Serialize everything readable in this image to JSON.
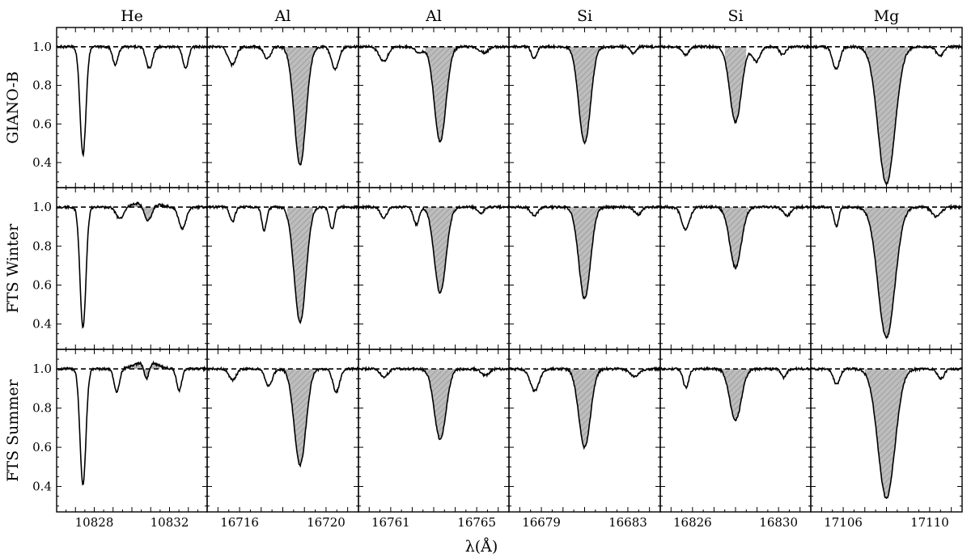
{
  "chart_data": {
    "type": "line",
    "xlabel": "λ(Å)",
    "rows": [
      "GIANO-B",
      "FTS Winter",
      "FTS Summer"
    ],
    "columns": [
      {
        "element": "He",
        "xlim": [
          10826.0,
          10834.0
        ],
        "xticks": [
          10828,
          10832
        ]
      },
      {
        "element": "Al",
        "xlim": [
          16714.5,
          16721.5
        ],
        "xticks": [
          16716,
          16720
        ]
      },
      {
        "element": "Al",
        "xlim": [
          16759.5,
          16766.5
        ],
        "xticks": [
          16761,
          16765
        ]
      },
      {
        "element": "Si",
        "xlim": [
          16677.5,
          16684.5
        ],
        "xticks": [
          16679,
          16683
        ]
      },
      {
        "element": "Si",
        "xlim": [
          16824.5,
          16831.5
        ],
        "xticks": [
          16826,
          16830
        ]
      },
      {
        "element": "Mg",
        "xlim": [
          17104.5,
          17111.5
        ],
        "xticks": [
          17106,
          17110
        ]
      }
    ],
    "ylim": [
      0.27,
      1.1
    ],
    "yticks": [
      "0.4",
      "0.6",
      "0.8",
      "1.0"
    ],
    "continuum": 1.0,
    "panels": [
      [
        {
          "line_center": 10827.4,
          "min_flux": 0.44,
          "shade": false
        },
        {
          "line_center": 16718.8,
          "min_flux": 0.39,
          "shade": [
            16718.0,
            16719.6
          ]
        },
        {
          "line_center": 16763.3,
          "min_flux": 0.51,
          "shade": [
            16762.6,
            16764.0
          ]
        },
        {
          "line_center": 16681.0,
          "min_flux": 0.5,
          "shade": [
            16680.1,
            16681.9
          ]
        },
        {
          "line_center": 16828.0,
          "min_flux": 0.61,
          "shade": [
            16827.5,
            16828.5
          ]
        },
        {
          "line_center": 17108.0,
          "min_flux": 0.29,
          "shade": [
            17107.0,
            17109.0
          ]
        }
      ],
      [
        {
          "line_center": 10827.4,
          "min_flux": 0.38,
          "shade": [
            10830.0,
            10831.5
          ],
          "emission_peak": 1.03
        },
        {
          "line_center": 16718.8,
          "min_flux": 0.41,
          "shade": [
            16718.2,
            16719.4
          ]
        },
        {
          "line_center": 16763.3,
          "min_flux": 0.56,
          "shade": [
            16762.6,
            16764.0
          ]
        },
        {
          "line_center": 16681.0,
          "min_flux": 0.53,
          "shade": [
            16680.1,
            16681.9
          ]
        },
        {
          "line_center": 16828.0,
          "min_flux": 0.69,
          "shade": [
            16827.3,
            16828.6
          ]
        },
        {
          "line_center": 17108.0,
          "min_flux": 0.33,
          "shade": [
            17107.0,
            17109.0
          ]
        }
      ],
      [
        {
          "line_center": 10827.4,
          "min_flux": 0.41,
          "shade": [
            10830.0,
            10831.5
          ],
          "emission_peak": 1.04
        },
        {
          "line_center": 16718.8,
          "min_flux": 0.51,
          "shade": [
            16718.0,
            16719.5
          ]
        },
        {
          "line_center": 16763.3,
          "min_flux": 0.64,
          "shade": [
            16762.5,
            16764.1
          ]
        },
        {
          "line_center": 16681.0,
          "min_flux": 0.6,
          "shade": [
            16680.1,
            16681.9
          ]
        },
        {
          "line_center": 16828.0,
          "min_flux": 0.74,
          "shade": [
            16827.2,
            16828.8
          ]
        },
        {
          "line_center": 17108.0,
          "min_flux": 0.34,
          "shade": [
            17107.0,
            17109.0
          ]
        }
      ]
    ]
  }
}
